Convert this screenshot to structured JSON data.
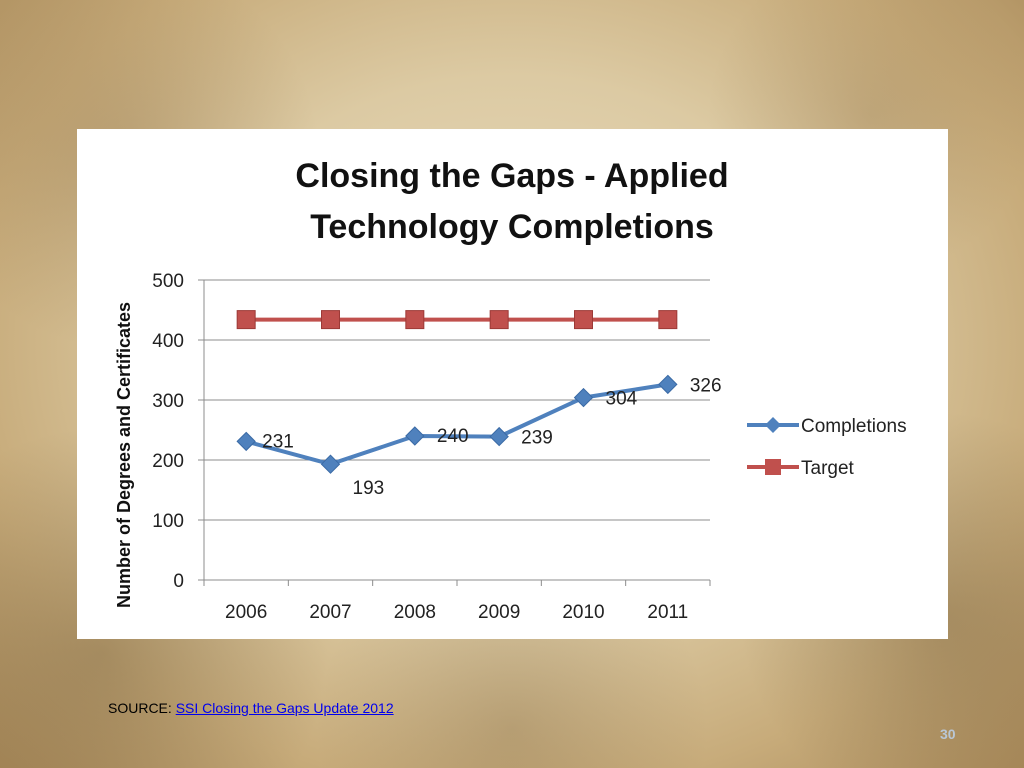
{
  "slide": {
    "source_label": "SOURCE:",
    "source_link": "SSI Closing the Gaps Update 2012",
    "page_number": "30"
  },
  "chart_data": {
    "type": "line",
    "title_lines": [
      "Closing the Gaps - Applied",
      "Technology Completions"
    ],
    "ylabel": "Number of Degrees and Certificates",
    "xlabel": "",
    "categories": [
      "2006",
      "2007",
      "2008",
      "2009",
      "2010",
      "2011"
    ],
    "ylim": [
      0,
      500
    ],
    "yticks": [
      0,
      100,
      200,
      300,
      400,
      500
    ],
    "grid": true,
    "legend_position": "right",
    "series": [
      {
        "name": "Completions",
        "values": [
          231,
          193,
          240,
          239,
          304,
          326
        ],
        "color": "#4f81bd",
        "marker": "diamond",
        "data_labels": [
          "231",
          "193",
          "240",
          "239",
          "304",
          "326"
        ]
      },
      {
        "name": "Target",
        "values": [
          434,
          434,
          434,
          434,
          434,
          434
        ],
        "color": "#c0504d",
        "marker": "square"
      }
    ]
  }
}
